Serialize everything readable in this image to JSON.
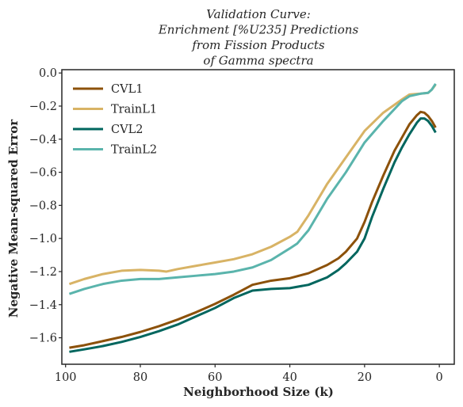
{
  "chart_data": {
    "type": "line",
    "title_lines": [
      "Validation Curve:",
      "Enrichment [%U235] Predictions",
      "from Fission Products",
      "of Gamma spectra"
    ],
    "xlabel": "Neighborhood Size (k)",
    "ylabel": "Negative Mean-squared Error",
    "xlim": [
      101,
      -4
    ],
    "ylim": [
      -1.76,
      0.02
    ],
    "x_ticks": [
      100,
      80,
      60,
      40,
      20,
      0
    ],
    "x_tick_labels": [
      "100",
      "80",
      "60",
      "40",
      "20",
      "0"
    ],
    "y_ticks": [
      0.0,
      -0.2,
      -0.4,
      -0.6,
      -0.8,
      -1.0,
      -1.2,
      -1.4,
      -1.6
    ],
    "y_tick_labels": [
      "0.0",
      "−0.2",
      "−0.4",
      "−0.6",
      "−0.8",
      "−1.0",
      "−1.2",
      "−1.4",
      "−1.6"
    ],
    "grid": false,
    "legend_position": "top-left",
    "series": [
      {
        "name": "CVL1",
        "color": "#8c510a",
        "x": [
          99,
          95,
          90,
          85,
          80,
          75,
          70,
          65,
          60,
          55,
          50,
          45,
          40,
          35,
          30,
          27,
          25,
          22,
          20,
          18,
          15,
          12,
          10,
          8,
          6,
          5,
          4,
          3,
          2,
          1
        ],
        "y": [
          -1.66,
          -1.645,
          -1.62,
          -1.595,
          -1.565,
          -1.53,
          -1.49,
          -1.445,
          -1.395,
          -1.34,
          -1.28,
          -1.255,
          -1.24,
          -1.21,
          -1.16,
          -1.12,
          -1.08,
          -1.0,
          -0.9,
          -0.78,
          -0.62,
          -0.47,
          -0.39,
          -0.31,
          -0.255,
          -0.235,
          -0.24,
          -0.26,
          -0.29,
          -0.33
        ]
      },
      {
        "name": "TrainL1",
        "color": "#d8b365",
        "x": [
          99,
          95,
          90,
          85,
          80,
          75,
          73,
          70,
          65,
          60,
          55,
          50,
          45,
          40,
          38,
          35,
          30,
          25,
          20,
          15,
          10,
          8,
          5,
          3,
          2,
          1
        ],
        "y": [
          -1.275,
          -1.245,
          -1.215,
          -1.195,
          -1.19,
          -1.195,
          -1.2,
          -1.185,
          -1.165,
          -1.145,
          -1.125,
          -1.095,
          -1.05,
          -0.99,
          -0.96,
          -0.86,
          -0.67,
          -0.51,
          -0.35,
          -0.24,
          -0.16,
          -0.13,
          -0.125,
          -0.12,
          -0.1,
          -0.07
        ]
      },
      {
        "name": "CVL2",
        "color": "#01665e",
        "x": [
          99,
          95,
          90,
          85,
          80,
          75,
          70,
          65,
          60,
          55,
          50,
          45,
          40,
          35,
          30,
          27,
          25,
          22,
          20,
          18,
          15,
          12,
          10,
          8,
          6,
          5,
          4,
          3,
          2,
          1
        ],
        "y": [
          -1.685,
          -1.67,
          -1.65,
          -1.625,
          -1.595,
          -1.56,
          -1.52,
          -1.47,
          -1.42,
          -1.36,
          -1.315,
          -1.305,
          -1.3,
          -1.28,
          -1.235,
          -1.19,
          -1.15,
          -1.08,
          -1.0,
          -0.87,
          -0.7,
          -0.54,
          -0.45,
          -0.37,
          -0.3,
          -0.275,
          -0.275,
          -0.29,
          -0.32,
          -0.36
        ]
      },
      {
        "name": "TrainL2",
        "color": "#5ab4ac",
        "x": [
          99,
          95,
          90,
          85,
          80,
          75,
          70,
          65,
          60,
          55,
          50,
          45,
          40,
          38,
          35,
          30,
          25,
          20,
          15,
          10,
          8,
          5,
          3,
          2,
          1
        ],
        "y": [
          -1.335,
          -1.305,
          -1.275,
          -1.255,
          -1.245,
          -1.245,
          -1.235,
          -1.225,
          -1.215,
          -1.2,
          -1.175,
          -1.13,
          -1.06,
          -1.03,
          -0.95,
          -0.76,
          -0.6,
          -0.42,
          -0.29,
          -0.17,
          -0.14,
          -0.125,
          -0.12,
          -0.1,
          -0.065
        ]
      }
    ]
  }
}
